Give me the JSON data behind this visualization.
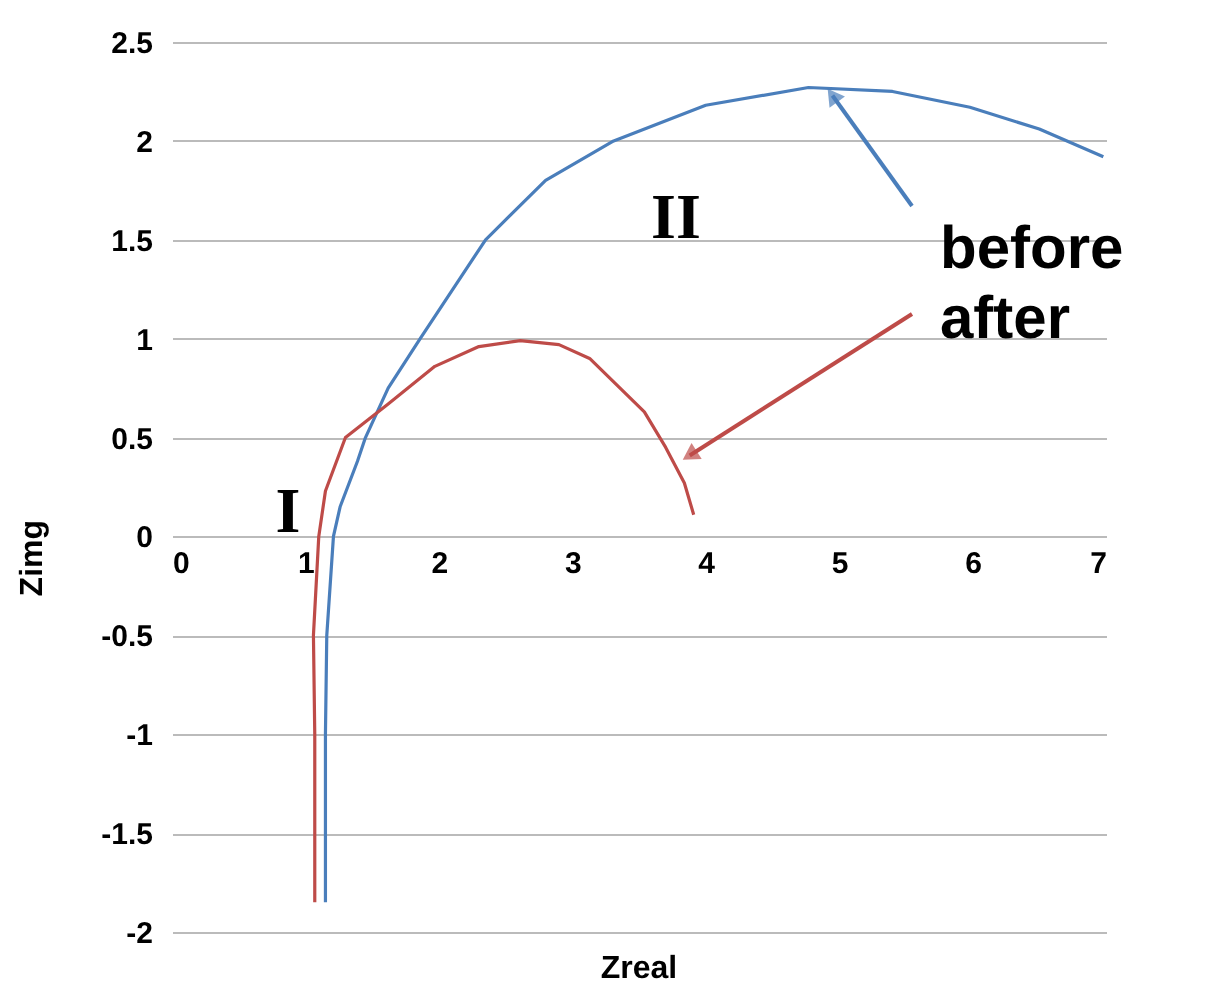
{
  "chart_data": {
    "type": "line",
    "xlabel": "Zreal",
    "ylabel": "Zimg",
    "xlim": [
      0,
      7
    ],
    "xticks": [
      0,
      1,
      2,
      3,
      4,
      5,
      6,
      7
    ],
    "ylim": [
      -2,
      2.5
    ],
    "yticks": [
      -2,
      -1.5,
      -1,
      -0.5,
      0,
      0.5,
      1,
      1.5,
      2,
      2.5
    ],
    "grid": "y",
    "legend": false,
    "marker": "none",
    "line_style": "solid",
    "series": [
      {
        "name": "before",
        "color": "#4a7ebb",
        "x": [
          1.15,
          1.15,
          1.15,
          1.16,
          1.21,
          1.26,
          1.39,
          1.45,
          1.62,
          1.86,
          2.35,
          2.8,
          3.31,
          4.0,
          4.77,
          5.4,
          5.98,
          6.5,
          6.98
        ],
        "values": [
          -1.85,
          -1.5,
          -1.0,
          -0.5,
          0.0,
          0.15,
          0.38,
          0.5,
          0.75,
          1.0,
          1.5,
          1.8,
          2.0,
          2.18,
          2.27,
          2.25,
          2.17,
          2.06,
          1.92
        ]
      },
      {
        "name": "after",
        "color": "#be4b48",
        "x": [
          1.07,
          1.07,
          1.07,
          1.06,
          1.1,
          1.15,
          1.3,
          1.62,
          1.97,
          2.3,
          2.61,
          2.9,
          3.13,
          3.54,
          3.7,
          3.84,
          3.91
        ],
        "values": [
          -1.85,
          -1.5,
          -1.0,
          -0.5,
          0.0,
          0.23,
          0.5,
          0.67,
          0.86,
          0.96,
          0.99,
          0.97,
          0.9,
          0.63,
          0.45,
          0.27,
          0.11
        ]
      }
    ],
    "annotations": [
      "I",
      "II"
    ]
  }
}
